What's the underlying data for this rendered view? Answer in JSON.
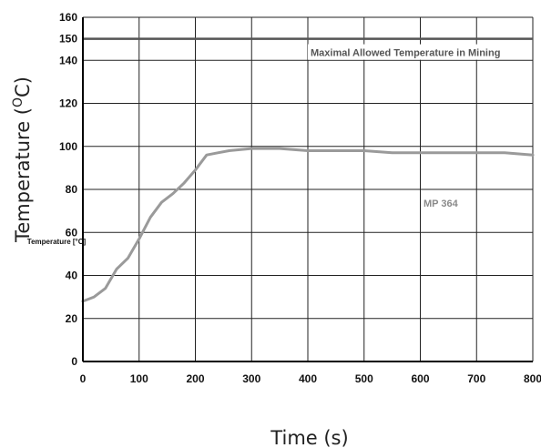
{
  "chart_data": {
    "type": "line",
    "xlabel": "Time (s)",
    "ylabel_prefix": "Temperature (",
    "ylabel_sup": "O",
    "ylabel_suffix": "C)",
    "inner_ylabel": "Temperature [°C]",
    "xlim": [
      0,
      800
    ],
    "ylim": [
      0,
      160
    ],
    "x_ticks": [
      0,
      100,
      200,
      300,
      400,
      500,
      600,
      700,
      800
    ],
    "y_ticks": [
      0,
      20,
      40,
      60,
      80,
      100,
      120,
      140,
      160
    ],
    "extra_y_tick": 150,
    "grid": true,
    "reference_line": {
      "y": 150,
      "label": "Maximal Allowed Temperature in Mining",
      "color": "#555555"
    },
    "series": [
      {
        "name": "MP 364",
        "color": "#9a9a9a",
        "x": [
          0,
          20,
          40,
          60,
          80,
          100,
          120,
          140,
          160,
          180,
          200,
          220,
          240,
          260,
          300,
          350,
          400,
          450,
          500,
          550,
          600,
          650,
          700,
          750,
          800
        ],
        "y": [
          28,
          30,
          34,
          43,
          48,
          57,
          67,
          74,
          78,
          83,
          89,
          96,
          97,
          98,
          99,
          99,
          98,
          98,
          98,
          97,
          97,
          97,
          97,
          97,
          96
        ]
      }
    ]
  }
}
